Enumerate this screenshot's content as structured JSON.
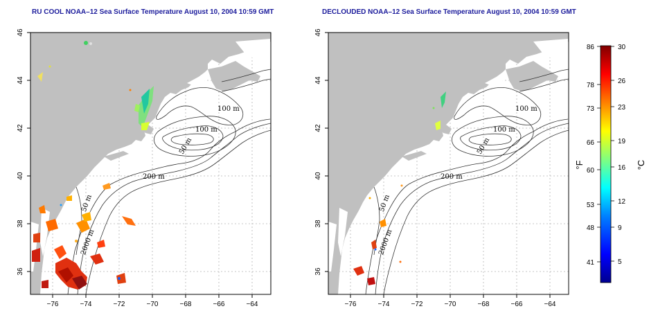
{
  "left_panel": {
    "title": "RU COOL NOAA–12 Sea Surface Temperature August 10, 2004 10:59 GMT",
    "contour_labels": [
      "100 m",
      "100 m",
      "50 m",
      "200 m",
      "50 m",
      "2000 m"
    ]
  },
  "right_panel": {
    "title": "DECLOUDED NOAA–12 Sea Surface Temperature August 10, 2004 10:59 GMT",
    "contour_labels": [
      "100 m",
      "100 m",
      "50 m",
      "200 m",
      "50 m",
      "2000 m"
    ]
  },
  "axes": {
    "x_ticks": [
      "−76",
      "−74",
      "−72",
      "−70",
      "−68",
      "−66",
      "−64"
    ],
    "y_ticks": [
      "46",
      "44",
      "42",
      "40",
      "38",
      "36"
    ]
  },
  "colorbar": {
    "fahrenheit_unit": "°F",
    "celsius_unit": "°C",
    "fahrenheit_ticks": [
      "86",
      "78",
      "73",
      "66",
      "60",
      "53",
      "48",
      "41"
    ],
    "celsius_ticks": [
      "30",
      "26",
      "23",
      "19",
      "16",
      "12",
      "9",
      "5"
    ],
    "min_c": 2,
    "max_c": 30,
    "colors": [
      "#00008f",
      "#0000ff",
      "#0080ff",
      "#00ffff",
      "#80ff80",
      "#ffff00",
      "#ff8000",
      "#ff0000",
      "#800000"
    ]
  },
  "colors": {
    "land": "#c0c0c0",
    "water": "#ffffff",
    "title": "#1c1c9c",
    "grid": "#b4b4b4",
    "contour": "#333333"
  }
}
